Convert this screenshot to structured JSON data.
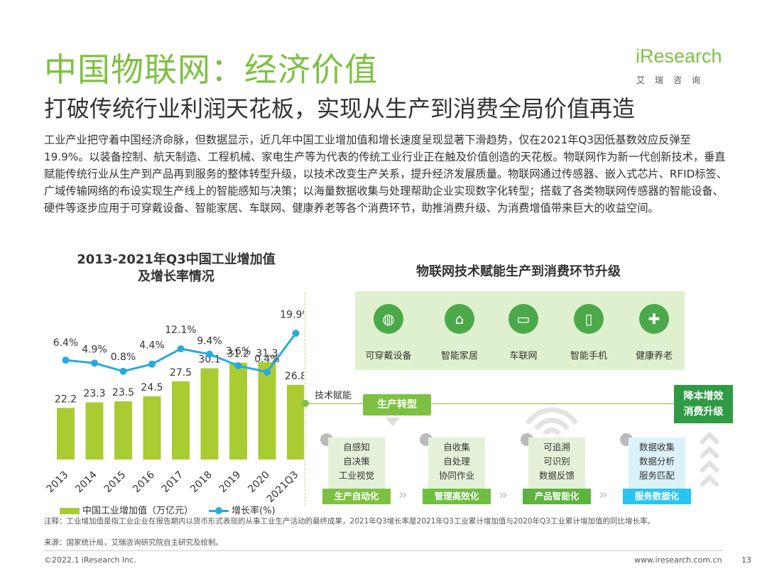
{
  "header": {
    "title": "中国物联网：经济价值",
    "subtitle": "打破传统行业利润天花板，实现从生产到消费全局价值再造",
    "logo_word": "iResearch",
    "logo_sub": "艾瑞咨询"
  },
  "intro": "工业产业把守着中国经济命脉，但数据显示，近几年中国工业增加值和增长速度呈现显著下滑趋势，仅在2021年Q3因低基数效应反弹至19.9%。以装备控制、航天制造、工程机械、家电生产等为代表的传统工业行业正在触及价值创造的天花板。物联网作为新一代创新技术，垂直赋能传统行业从生产到产品再到服务的整体转型升级，以技术改变生产关系，提升经济发展质量。物联网通过传感器、嵌入式芯片、RFID标签、广域传输网络的布设实现生产线上的智能感知与决策；以海量数据收集与处理帮助企业实现数字化转型；搭载了各类物联网传感器的智能设备、硬件等逐步应用于可穿戴设备、智能家居、车联网、健康养老等各个消费环节，助推消费升级、为消费增值带来巨大的收益空间。",
  "chart_data": {
    "type": "bar",
    "title": "2013-2021年Q3中国工业增加值\n及增长率情况",
    "categories": [
      "2013",
      "2014",
      "2015",
      "2016",
      "2017",
      "2018",
      "2019",
      "2020",
      "2021Q3"
    ],
    "series": [
      {
        "name": "中国工业增加值（万亿元）",
        "type": "bar",
        "values": [
          22.2,
          23.3,
          23.5,
          24.5,
          27.5,
          30.1,
          31.2,
          31.3,
          26.8
        ],
        "labels": [
          "22.2",
          "23.3",
          "23.5",
          "24.5",
          "27.5",
          "30.1",
          "31.2",
          "31.3",
          "26.8"
        ],
        "color": "#a9cc33"
      },
      {
        "name": "增长率(%)",
        "type": "line",
        "values": [
          6.4,
          4.9,
          0.8,
          4.4,
          12.1,
          9.4,
          3.6,
          0.4,
          19.9
        ],
        "labels": [
          "6.4%",
          "4.9%",
          "0.8%",
          "4.4%",
          "12.1%",
          "9.4%",
          "3.6%",
          "0.4%",
          "19.9%"
        ],
        "color": "#29a9e1"
      }
    ],
    "grid": false,
    "legend": "bottom"
  },
  "diagram": {
    "title": "物联网技术赋能生产到消费环节升级",
    "consumer_items": [
      {
        "label": "可穿戴设备",
        "icon": "wearable-icon"
      },
      {
        "label": "智能家居",
        "icon": "smart-home-icon"
      },
      {
        "label": "车联网",
        "icon": "connected-car-icon"
      },
      {
        "label": "智能手机",
        "icon": "smartphone-icon"
      },
      {
        "label": "健康养老",
        "icon": "healthcare-icon"
      }
    ],
    "tech_label": "技术赋能",
    "production_badge": "生产转型",
    "cost_badge": "降本增效\n消费升级",
    "stages": [
      {
        "lines": [
          "自感知",
          "自决策",
          "工业视觉"
        ],
        "tag": "生产自动化"
      },
      {
        "lines": [
          "自收集",
          "自处理",
          "协同作业"
        ],
        "tag": "管理高效化"
      },
      {
        "lines": [
          "可追溯",
          "可识别",
          "数据反馈"
        ],
        "tag": "产品智能化"
      },
      {
        "lines": [
          "数据收集",
          "数据分析",
          "服务匹配"
        ],
        "tag": "服务数据化"
      }
    ],
    "colors": {
      "green": "#7ec142",
      "dark_green": "#2f9b45",
      "blue": "#29c4f0"
    }
  },
  "notes": {
    "footnote": "注释：工业增加值是指工业企业在报告期内以货币形式表现的从事工业生产活动的最终成果，2021年Q3增长率是2021年Q3工业累计增加值与2020年Q3工业累计增加值的同比增长率。",
    "source": "来源：国家统计局，艾瑞咨询研究院自主研究及绘制。"
  },
  "footer": {
    "copyright": "©2022.1 iResearch Inc.",
    "website": "www.iresearch.com.cn",
    "page": "13"
  }
}
